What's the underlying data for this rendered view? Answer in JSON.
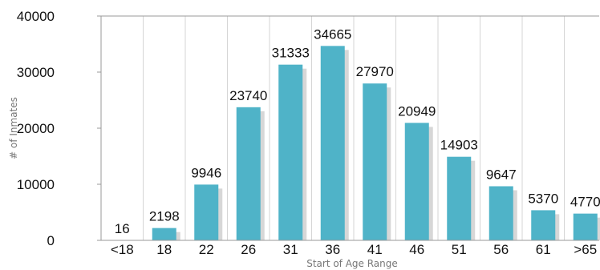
{
  "chart_data": {
    "type": "bar",
    "categories": [
      "<18",
      "18",
      "22",
      "26",
      "31",
      "36",
      "41",
      "46",
      "51",
      "56",
      "61",
      ">65"
    ],
    "values": [
      16,
      2198,
      9946,
      23740,
      31333,
      34665,
      27970,
      20949,
      14903,
      9647,
      5370,
      4770
    ],
    "data_labels": [
      "16",
      "2198",
      "9946",
      "23740",
      "31333",
      "34665",
      "27970",
      "20949",
      "14903",
      "9647",
      "5370",
      "4770"
    ],
    "title": "",
    "xlabel": "Start of Age Range",
    "ylabel": "# of Inmates",
    "ylim": [
      0,
      40000
    ],
    "yticks": [
      "0",
      "10000",
      "20000",
      "30000",
      "40000"
    ],
    "ytick_values": [
      0,
      10000,
      20000,
      30000,
      40000
    ],
    "grid": "vertical",
    "legend": "none",
    "colors": {
      "bar": "#4fb3c8",
      "bar_shadow": "#c9c9c9",
      "grid": "#d6d6d6",
      "axis": "#999999"
    }
  }
}
